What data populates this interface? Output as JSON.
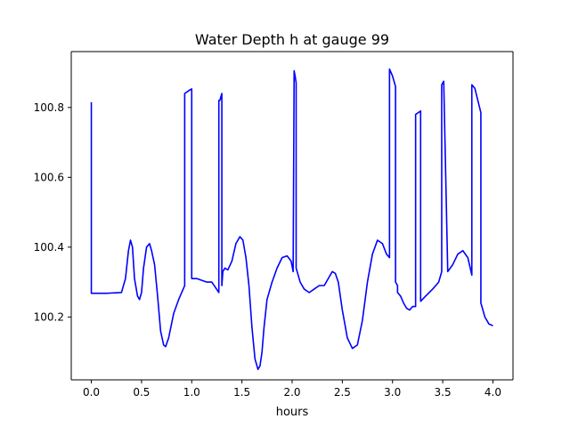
{
  "chart_data": {
    "type": "line",
    "title": "Water Depth h at gauge 99",
    "xlabel": "hours",
    "ylabel": "",
    "xlim": [
      -0.2,
      4.2
    ],
    "ylim": [
      100.02,
      100.96
    ],
    "xticks": [
      0.0,
      0.5,
      1.0,
      1.5,
      2.0,
      2.5,
      3.0,
      3.5,
      4.0
    ],
    "xtick_labels": [
      "0.0",
      "0.5",
      "1.0",
      "1.5",
      "2.0",
      "2.5",
      "3.0",
      "3.5",
      "4.0"
    ],
    "yticks": [
      100.2,
      100.4,
      100.6,
      100.8
    ],
    "ytick_labels": [
      "100.2",
      "100.4",
      "100.6",
      "100.8"
    ],
    "grid": false,
    "legend": "none",
    "series": [
      {
        "color": "#0000ff",
        "x": [
          0.0,
          0.0,
          0.15,
          0.3,
          0.34,
          0.37,
          0.39,
          0.41,
          0.43,
          0.46,
          0.48,
          0.5,
          0.52,
          0.55,
          0.58,
          0.6,
          0.63,
          0.66,
          0.69,
          0.72,
          0.74,
          0.77,
          0.82,
          0.87,
          0.93,
          0.93,
          0.98,
          1.0,
          1.0,
          1.05,
          1.15,
          1.2,
          1.27,
          1.27,
          1.28,
          1.29,
          1.3,
          1.3,
          1.31,
          1.33,
          1.36,
          1.4,
          1.44,
          1.48,
          1.51,
          1.54,
          1.57,
          1.6,
          1.63,
          1.66,
          1.68,
          1.7,
          1.72,
          1.75,
          1.8,
          1.85,
          1.9,
          1.95,
          1.99,
          2.01,
          2.02,
          2.02,
          2.03,
          2.04,
          2.04,
          2.08,
          2.12,
          2.17,
          2.22,
          2.27,
          2.32,
          2.36,
          2.4,
          2.43,
          2.46,
          2.5,
          2.55,
          2.6,
          2.65,
          2.7,
          2.75,
          2.8,
          2.85,
          2.9,
          2.94,
          2.97,
          2.97,
          3.0,
          3.03,
          3.03,
          3.05,
          3.05,
          3.08,
          3.11,
          3.14,
          3.17,
          3.2,
          3.23,
          3.23,
          3.28,
          3.28,
          3.33,
          3.4,
          3.46,
          3.48,
          3.49,
          3.49,
          3.51,
          3.51,
          3.55,
          3.6,
          3.65,
          3.7,
          3.75,
          3.79,
          3.79,
          3.82,
          3.88,
          3.88,
          3.92,
          3.96,
          4.0
        ],
        "y": [
          100.815,
          100.268,
          100.268,
          100.27,
          100.31,
          100.39,
          100.42,
          100.4,
          100.31,
          100.26,
          100.25,
          100.27,
          100.34,
          100.4,
          100.41,
          100.39,
          100.35,
          100.26,
          100.16,
          100.12,
          100.115,
          100.14,
          100.21,
          100.25,
          100.29,
          100.84,
          100.85,
          100.853,
          100.31,
          100.31,
          100.3,
          100.3,
          100.27,
          100.82,
          100.82,
          100.83,
          100.84,
          100.29,
          100.33,
          100.34,
          100.335,
          100.36,
          100.41,
          100.43,
          100.42,
          100.37,
          100.29,
          100.17,
          100.08,
          100.05,
          100.06,
          100.1,
          100.17,
          100.25,
          100.3,
          100.34,
          100.37,
          100.375,
          100.36,
          100.33,
          100.905,
          100.905,
          100.89,
          100.87,
          100.34,
          100.3,
          100.28,
          100.27,
          100.28,
          100.29,
          100.29,
          100.31,
          100.33,
          100.325,
          100.3,
          100.22,
          100.14,
          100.11,
          100.12,
          100.19,
          100.3,
          100.38,
          100.42,
          100.41,
          100.38,
          100.37,
          100.91,
          100.89,
          100.86,
          100.3,
          100.29,
          100.27,
          100.26,
          100.24,
          100.225,
          100.22,
          100.23,
          100.23,
          100.78,
          100.79,
          100.245,
          100.26,
          100.28,
          100.3,
          100.32,
          100.33,
          100.865,
          100.875,
          100.875,
          100.33,
          100.35,
          100.38,
          100.39,
          100.37,
          100.32,
          100.865,
          100.855,
          100.785,
          100.24,
          100.2,
          100.18,
          100.175
        ]
      }
    ]
  }
}
